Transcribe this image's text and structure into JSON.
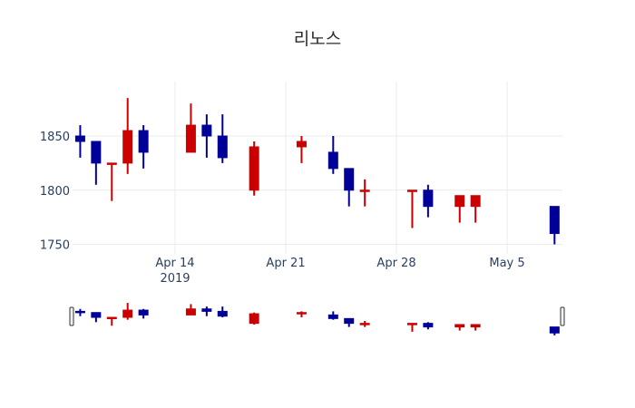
{
  "chart_data": {
    "type": "candlestick",
    "title": "리노스",
    "xlabel": "",
    "ylabel": "",
    "ylim": [
      1742,
      1893
    ],
    "y_ticks": [
      1750,
      1800,
      1850
    ],
    "x_ticks": [
      {
        "date": "2019-04-14",
        "label": "Apr 14",
        "sublabel": "2019"
      },
      {
        "date": "2019-04-21",
        "label": "Apr 21",
        "sublabel": ""
      },
      {
        "date": "2019-04-28",
        "label": "Apr 28",
        "sublabel": ""
      },
      {
        "date": "2019-05-05",
        "label": "May 5",
        "sublabel": ""
      }
    ],
    "xrange": [
      "2019-04-07.7",
      "2019-05-08.5"
    ],
    "increasing_color": "#cc0000",
    "decreasing_color": "#000099",
    "grid": true,
    "rangeslider": true,
    "candles": [
      {
        "date": "2019-04-08",
        "open": 1850,
        "high": 1860,
        "low": 1830,
        "close": 1845
      },
      {
        "date": "2019-04-09",
        "open": 1845,
        "high": 1845,
        "low": 1805,
        "close": 1825
      },
      {
        "date": "2019-04-10",
        "open": 1825,
        "high": 1825,
        "low": 1790,
        "close": 1825
      },
      {
        "date": "2019-04-11",
        "open": 1825,
        "high": 1885,
        "low": 1815,
        "close": 1855
      },
      {
        "date": "2019-04-12",
        "open": 1855,
        "high": 1860,
        "low": 1820,
        "close": 1835
      },
      {
        "date": "2019-04-15",
        "open": 1835,
        "high": 1880,
        "low": 1835,
        "close": 1860
      },
      {
        "date": "2019-04-16",
        "open": 1860,
        "high": 1870,
        "low": 1830,
        "close": 1850
      },
      {
        "date": "2019-04-17",
        "open": 1850,
        "high": 1870,
        "low": 1825,
        "close": 1830
      },
      {
        "date": "2019-04-19",
        "open": 1800,
        "high": 1845,
        "low": 1795,
        "close": 1840
      },
      {
        "date": "2019-04-22",
        "open": 1840,
        "high": 1850,
        "low": 1825,
        "close": 1845
      },
      {
        "date": "2019-04-24",
        "open": 1835,
        "high": 1850,
        "low": 1815,
        "close": 1820
      },
      {
        "date": "2019-04-25",
        "open": 1820,
        "high": 1820,
        "low": 1785,
        "close": 1800
      },
      {
        "date": "2019-04-26",
        "open": 1800,
        "high": 1810,
        "low": 1785,
        "close": 1800
      },
      {
        "date": "2019-04-29",
        "open": 1800,
        "high": 1800,
        "low": 1765,
        "close": 1800
      },
      {
        "date": "2019-04-30",
        "open": 1800,
        "high": 1805,
        "low": 1775,
        "close": 1785
      },
      {
        "date": "2019-05-02",
        "open": 1785,
        "high": 1795,
        "low": 1770,
        "close": 1795
      },
      {
        "date": "2019-05-03",
        "open": 1785,
        "high": 1795,
        "low": 1770,
        "close": 1795
      },
      {
        "date": "2019-05-08",
        "open": 1785,
        "high": 1785,
        "low": 1750,
        "close": 1760
      }
    ]
  }
}
